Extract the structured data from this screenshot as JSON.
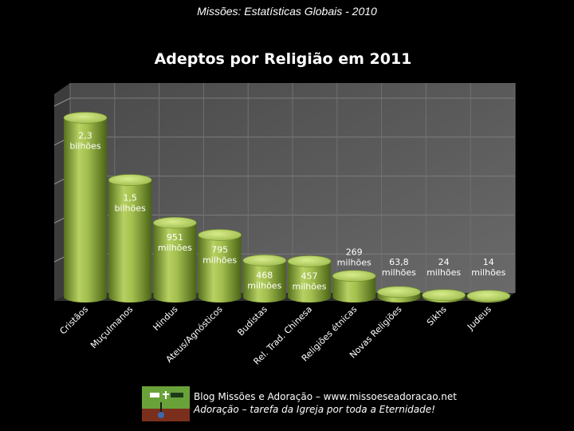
{
  "slide_title": "Missões: Estatísticas Globais - 2010",
  "footer": {
    "line1": "Blog Missões e Adoração – www.missoeseadoracao.net",
    "line2": "Adoração – tarefa da Igreja por toda a Eternidade!"
  },
  "colors": {
    "background": "#000000",
    "bar_light": "#c3dc6e",
    "bar_dark": "#4d6918",
    "plot_bg": "#5e5e5e"
  },
  "chart_data": {
    "type": "bar",
    "title": "Adeptos por Religião em 2011",
    "xlabel": "",
    "ylabel": "",
    "grid": true,
    "unit": "milhões",
    "categories": [
      "Cristãos",
      "Muçulmanos",
      "Hindus",
      "Ateus/Agnósticos",
      "Budistas",
      "Rel. Trad. Chinesa",
      "Religiões étnicas",
      "Novas Religiões",
      "Sikhs",
      "Judeus"
    ],
    "values": [
      2300,
      1500,
      951,
      795,
      468,
      457,
      269,
      63.8,
      24,
      14
    ],
    "data_labels": [
      [
        "2,3",
        "bilhões"
      ],
      [
        "1,5",
        "bilhões"
      ],
      [
        "951",
        "milhões"
      ],
      [
        "795",
        "milhões"
      ],
      [
        "468",
        "milhões"
      ],
      [
        "457",
        "milhões"
      ],
      [
        "269",
        "milhões"
      ],
      [
        "63,8",
        "milhões"
      ],
      [
        "24",
        "milhões"
      ],
      [
        "14",
        "milhões"
      ]
    ],
    "ylim": [
      0,
      2500
    ]
  }
}
